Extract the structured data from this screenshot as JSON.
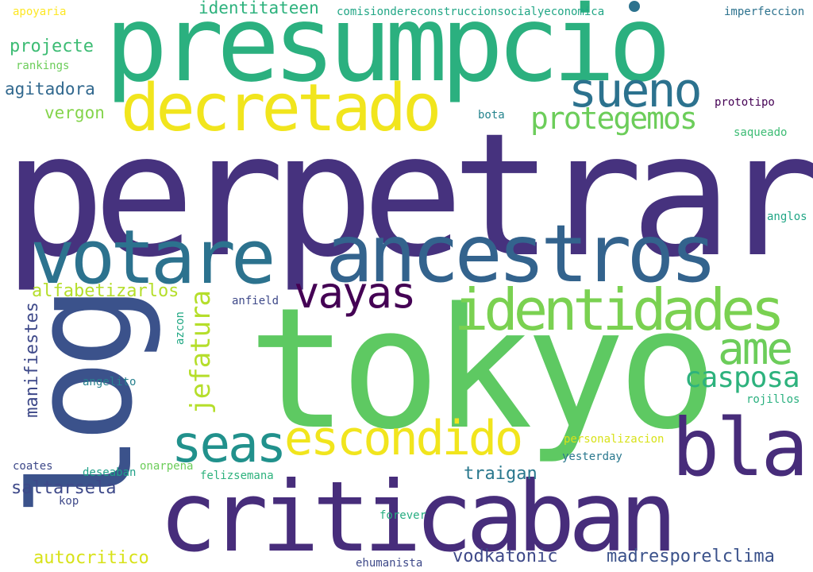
{
  "words": [
    {
      "text": "perpetrar",
      "color": "#46327e"
    },
    {
      "text": "tokyo",
      "color": "#5ec962"
    },
    {
      "text": "presumpcio",
      "color": "#2bb07f"
    },
    {
      "text": "criticaban",
      "color": "#472d7b"
    },
    {
      "text": "ancestros",
      "color": "#33638d"
    },
    {
      "text": "votare",
      "color": "#2c728e"
    },
    {
      "text": "decretado",
      "color": "#f1e51d"
    },
    {
      "text": "identidades",
      "color": "#7ad151"
    },
    {
      "text": "bla",
      "color": "#472c7a"
    },
    {
      "text": "log",
      "color": "#3b528b"
    },
    {
      "text": "escondido",
      "color": "#f1e51d"
    },
    {
      "text": "seas",
      "color": "#21918c"
    },
    {
      "text": "sueno",
      "color": "#2c728e"
    },
    {
      "text": "vayas",
      "color": "#440154"
    },
    {
      "text": "ame",
      "color": "#6ccd5a"
    },
    {
      "text": "protegemos",
      "color": "#6ccd5a"
    },
    {
      "text": "casposa",
      "color": "#2db27d"
    },
    {
      "text": "jefatura",
      "color": "#b5de2b"
    },
    {
      "text": "alfabetizarlos",
      "color": "#b5de2b"
    },
    {
      "text": "manifiestes",
      "color": "#3e4989"
    },
    {
      "text": "saltarsela",
      "color": "#3e4989"
    },
    {
      "text": "traigan",
      "color": "#2a788e"
    },
    {
      "text": "madresporelclima",
      "color": "#3b528b"
    },
    {
      "text": "vodkatonic",
      "color": "#3e4989"
    },
    {
      "text": "autocritico",
      "color": "#d8e219"
    },
    {
      "text": "identitateen",
      "color": "#2db27d"
    },
    {
      "text": "projecte",
      "color": "#3dbc74"
    },
    {
      "text": "agitadora",
      "color": "#31688e"
    },
    {
      "text": "vergon",
      "color": "#84d44b"
    },
    {
      "text": "apoyaria",
      "color": "#fde725"
    },
    {
      "text": "rankings",
      "color": "#6ccd5a"
    },
    {
      "text": "comisiondereconstruccionsocialyeconomica",
      "color": "#21a685"
    },
    {
      "text": "imperfeccion",
      "color": "#2c728e"
    },
    {
      "text": "prototipo",
      "color": "#440154"
    },
    {
      "text": "bota",
      "color": "#25848e"
    },
    {
      "text": "saqueado",
      "color": "#3dbc74"
    },
    {
      "text": "anglos",
      "color": "#21a685"
    },
    {
      "text": "anfield",
      "color": "#3e4989"
    },
    {
      "text": "azcon",
      "color": "#22a884"
    },
    {
      "text": "angelito",
      "color": "#27808e"
    },
    {
      "text": "rojillos",
      "color": "#2ab07f"
    },
    {
      "text": "personalizacion",
      "color": "#d8e219"
    },
    {
      "text": "yesterday",
      "color": "#2a788e"
    },
    {
      "text": "coates",
      "color": "#3e4989"
    },
    {
      "text": "deseaban",
      "color": "#1fa088"
    },
    {
      "text": "onarpena",
      "color": "#6ccd5a"
    },
    {
      "text": "felizsemana",
      "color": "#2db27d"
    },
    {
      "text": "kop",
      "color": "#3e4989"
    },
    {
      "text": "forever",
      "color": "#27ad81"
    },
    {
      "text": "ehumanista",
      "color": "#3e4989"
    },
    {
      "text": "diacritic-circle",
      "color": "#2c728e"
    }
  ]
}
